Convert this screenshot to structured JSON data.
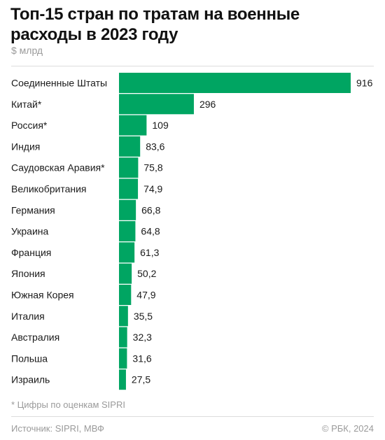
{
  "title": "Топ-15 стран по тратам на военные расходы в 2023 году",
  "unit": "$ млрд",
  "note": "* Цифры по оценкам SIPRI",
  "source": "Источник: SIPRI, МВФ",
  "copyright": "© РБК, 2024",
  "colors": {
    "bar": "#00a562",
    "divider": "#dcdcdc",
    "muted": "#9a9a9a"
  },
  "chart_data": {
    "type": "bar",
    "orientation": "horizontal",
    "title": "Топ-15 стран по тратам на военные расходы в 2023 году",
    "unit": "$ млрд",
    "categories": [
      "Соединенные Штаты",
      "Китай*",
      "Россия*",
      "Индия",
      "Саудовская Аравия*",
      "Великобритания",
      "Германия",
      "Украина",
      "Франция",
      "Япония",
      "Южная Корея",
      "Италия",
      "Австралия",
      "Польша",
      "Израиль"
    ],
    "values": [
      916,
      296,
      109,
      83.6,
      75.8,
      74.9,
      66.8,
      64.8,
      61.3,
      50.2,
      47.9,
      35.5,
      32.3,
      31.6,
      27.5
    ],
    "value_labels": [
      "916",
      "296",
      "109",
      "83,6",
      "75,8",
      "74,9",
      "66,8",
      "64,8",
      "61,3",
      "50,2",
      "47,9",
      "35,5",
      "32,3",
      "31,6",
      "27,5"
    ],
    "xlim": [
      0,
      916
    ],
    "grid": false,
    "legend": "none"
  }
}
